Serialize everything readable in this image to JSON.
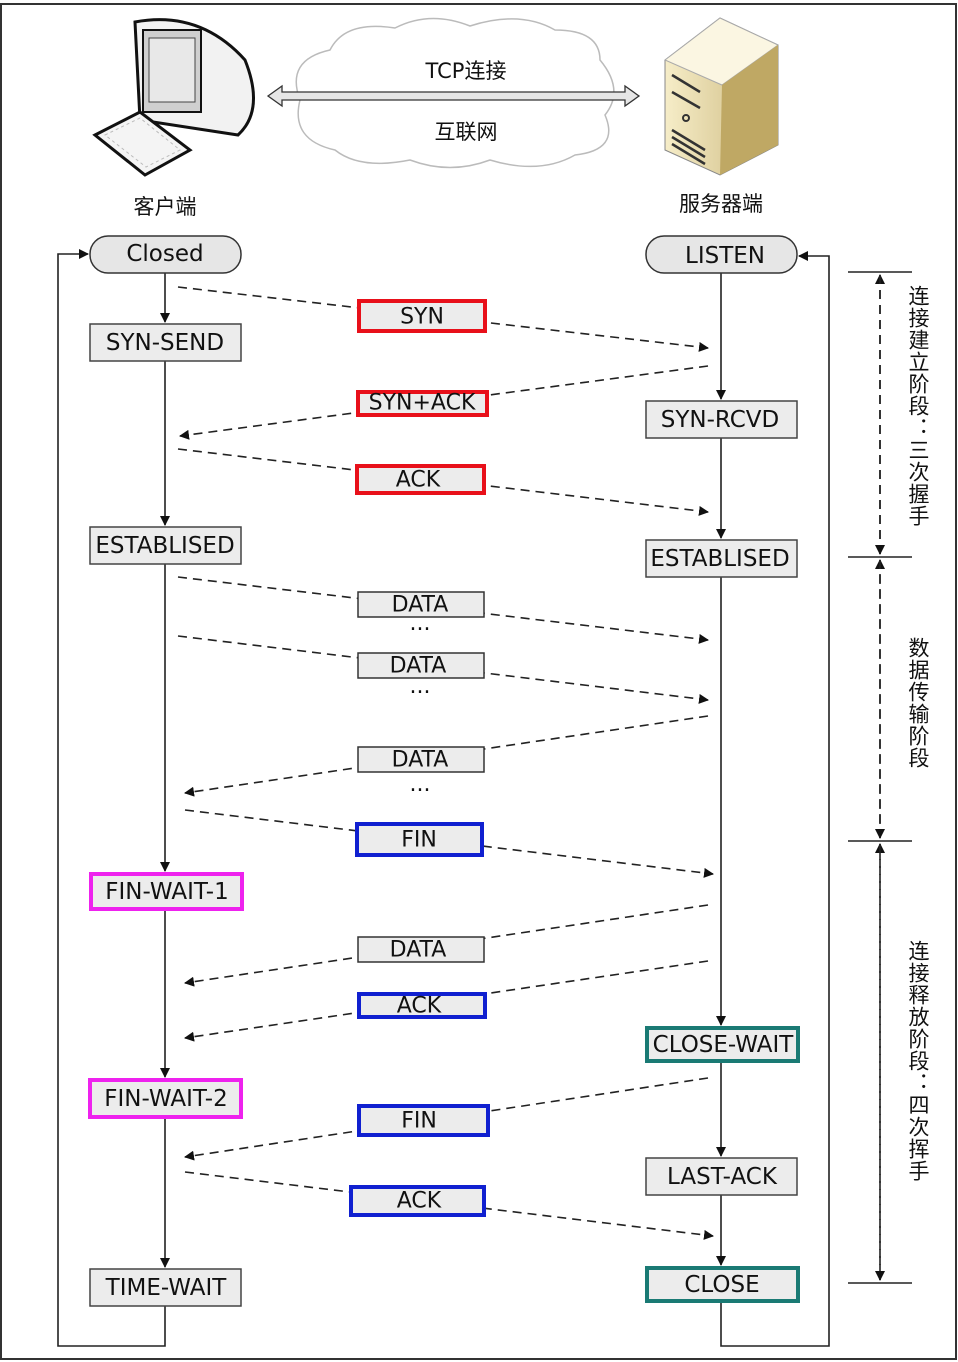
{
  "header": {
    "cloud_top": "TCP连接",
    "cloud_bottom": "互联网",
    "client_label": "客户端",
    "server_label": "服务器端"
  },
  "client_states": [
    "Closed",
    "SYN-SEND",
    "ESTABLISED",
    "FIN-WAIT-1",
    "FIN-WAIT-2",
    "TIME-WAIT"
  ],
  "server_states": [
    "LISTEN",
    "SYN-RCVD",
    "ESTABLISED",
    "CLOSE-WAIT",
    "LAST-ACK",
    "CLOSE"
  ],
  "messages": [
    "SYN",
    "SYN+ACK",
    "ACK",
    "DATA",
    "DATA",
    "DATA",
    "FIN",
    "DATA",
    "ACK",
    "FIN",
    "ACK"
  ],
  "ellipsis": "···",
  "phases": [
    "连接建立阶段：三次握手",
    "数据传输阶段",
    "连接释放阶段：四次挥手"
  ],
  "colors": {
    "handshake": "#e8101a",
    "fin_wait": "#ee22ee",
    "teardown": "#1020d0",
    "server_close": "#1a7a74",
    "box_fill": "#ececec"
  }
}
